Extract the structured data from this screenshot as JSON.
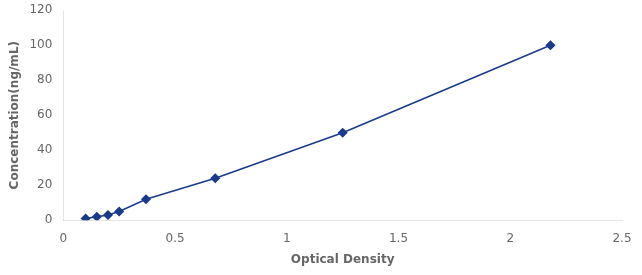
{
  "chart_data": {
    "type": "line",
    "x": [
      0.1,
      0.15,
      0.2,
      0.25,
      0.37,
      0.68,
      1.25,
      2.18
    ],
    "values": [
      1.0,
      2.0,
      3.0,
      5.0,
      12.0,
      24.0,
      50.0,
      100.0
    ],
    "color": "#1a3a8c",
    "marker": "diamond",
    "xlabel": "Optical Density",
    "ylabel": "Concentration(ng/mL)",
    "xlim": [
      0,
      2.5
    ],
    "ylim": [
      0,
      120
    ],
    "xticks": [
      0,
      0.5,
      1,
      1.5,
      2,
      2.5
    ],
    "yticks": [
      0,
      20,
      40,
      60,
      80,
      100,
      120
    ],
    "grid": false
  }
}
